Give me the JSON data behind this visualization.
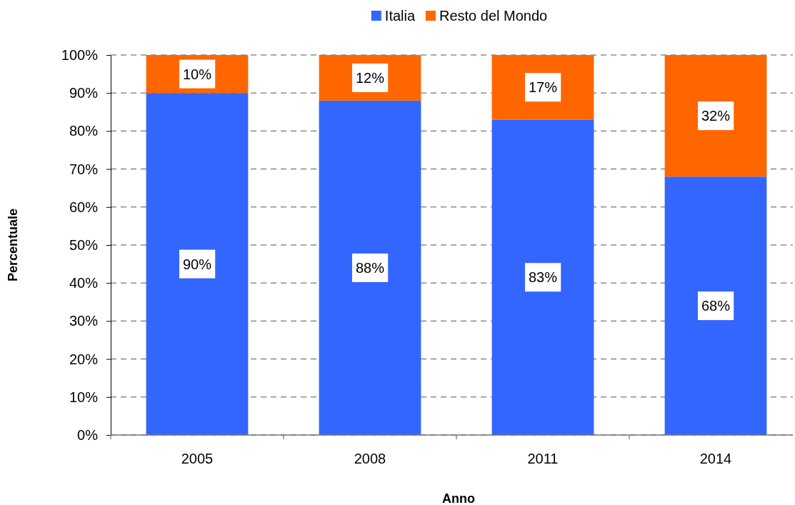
{
  "chart_data": {
    "type": "bar",
    "stacked": true,
    "xlabel": "Anno",
    "ylabel": "Percentuale",
    "categories": [
      "2005",
      "2008",
      "2011",
      "2014"
    ],
    "series": [
      {
        "name": "Italia",
        "color": "#3366ff",
        "values": [
          90,
          88,
          83,
          68
        ],
        "value_labels": [
          "90%",
          "88%",
          "83%",
          "68%"
        ]
      },
      {
        "name": "Resto del Mondo",
        "color": "#ff6600",
        "values": [
          10,
          12,
          17,
          32
        ],
        "value_labels": [
          "10%",
          "12%",
          "17%",
          "32%"
        ]
      }
    ],
    "ylim": [
      0,
      100
    ],
    "yticks": [
      {
        "value": 0,
        "label": "0%"
      },
      {
        "value": 10,
        "label": "10%"
      },
      {
        "value": 20,
        "label": "20%"
      },
      {
        "value": 30,
        "label": "30%"
      },
      {
        "value": 40,
        "label": "40%"
      },
      {
        "value": 50,
        "label": "50%"
      },
      {
        "value": 60,
        "label": "60%"
      },
      {
        "value": 70,
        "label": "70%"
      },
      {
        "value": 80,
        "label": "80%"
      },
      {
        "value": 90,
        "label": "90%"
      },
      {
        "value": 100,
        "label": "100%"
      }
    ],
    "grid": "y",
    "legend": "top"
  }
}
